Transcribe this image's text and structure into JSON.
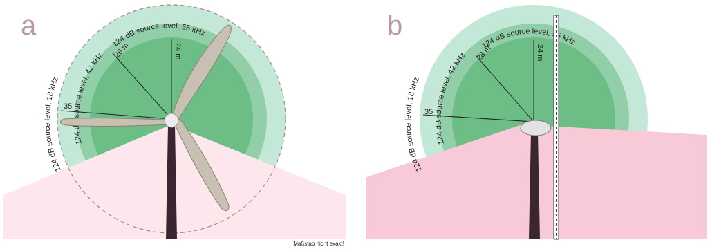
{
  "colors": {
    "outer_ring": "#c4e8d8",
    "middle_ring": "#92cea8",
    "inner_ring": "#6cbe86",
    "ground_a": "#fde6ec",
    "ground_b": "#f8c9d6",
    "tower": "#3a2630",
    "blade": "#c9c0b4",
    "nacelle": "#e2e2e2",
    "panel_letter": "#b89aa5"
  },
  "panel_a": {
    "letter": "a",
    "ring_labels": {
      "outer": "124 dB source level, 18 kHz",
      "middle": "124 dB source level, 42 kHz",
      "inner": "124 dB source level, 55 kHz"
    },
    "distance_labels": {
      "outer": "35 m",
      "middle": "28 m",
      "inner": "24 m"
    },
    "note": "Maßstab nicht exakt!"
  },
  "panel_b": {
    "letter": "b",
    "ring_labels": {
      "outer": "124 dB source level, 18 kHz",
      "middle": "124 dB source level, 42 kHz",
      "inner": "124 dB source level, 55 kHz"
    },
    "distance_labels": {
      "outer": "35 m",
      "middle": "28 m",
      "inner": "24 m"
    }
  }
}
